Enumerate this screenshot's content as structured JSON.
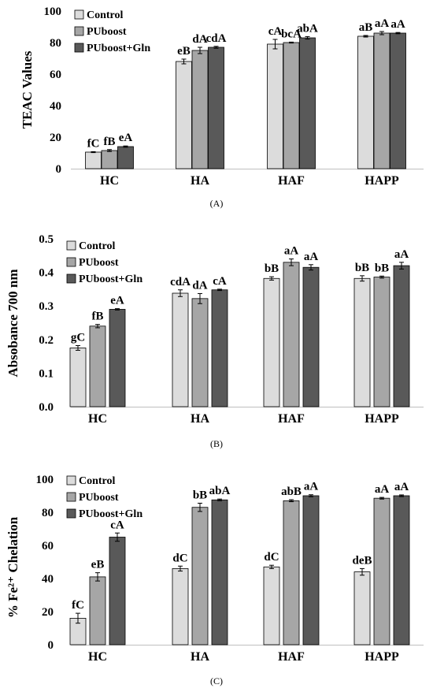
{
  "colors": {
    "control": "#dcdcdc",
    "puboost": "#a6a6a6",
    "puboost_gln": "#595959",
    "outline": "#000000"
  },
  "chart_data": [
    {
      "type": "bar",
      "panel_label": "(A)",
      "ylabel": "TEAC Values",
      "ylim": [
        0,
        100
      ],
      "yticks": [
        "0",
        "20",
        "40",
        "60",
        "80",
        "100"
      ],
      "categories": [
        "HC",
        "HA",
        "HAF",
        "HAPP"
      ],
      "legend_position": "top-left",
      "series": [
        {
          "name": "Control",
          "values": [
            10.5,
            68,
            79,
            84
          ],
          "errors": [
            0.3,
            1.5,
            3.0,
            0.5
          ],
          "labels": [
            "fC",
            "eB",
            "cA",
            "aB"
          ]
        },
        {
          "name": "PUboost",
          "values": [
            11.5,
            75,
            80,
            86
          ],
          "errors": [
            0.6,
            2.0,
            0.3,
            1.0
          ],
          "labels": [
            "fB",
            "dA",
            "bcA",
            "aA"
          ]
        },
        {
          "name": "PUboost+Gln",
          "values": [
            14,
            77,
            83,
            86
          ],
          "errors": [
            0.4,
            0.6,
            0.8,
            0.4
          ],
          "labels": [
            "eA",
            "cdA",
            "abA",
            "aA"
          ]
        }
      ]
    },
    {
      "type": "bar",
      "panel_label": "(B)",
      "ylabel": "Absobance 700 nm",
      "ylim": [
        0,
        0.5
      ],
      "yticks": [
        "0.0",
        "0.1",
        "0.2",
        "0.3",
        "0.4",
        "0.5"
      ],
      "categories": [
        "HC",
        "HA",
        "HAF",
        "HAPP"
      ],
      "legend_position": "top-left",
      "series": [
        {
          "name": "Control",
          "values": [
            0.175,
            0.338,
            0.382,
            0.382
          ],
          "errors": [
            0.007,
            0.01,
            0.005,
            0.008
          ],
          "labels": [
            "gC",
            "cdA",
            "bB",
            "bB"
          ]
        },
        {
          "name": "PUboost",
          "values": [
            0.24,
            0.322,
            0.43,
            0.386
          ],
          "errors": [
            0.005,
            0.015,
            0.01,
            0.003
          ],
          "labels": [
            "fB",
            "dA",
            "aA",
            "bB"
          ]
        },
        {
          "name": "PUboost+Gln",
          "values": [
            0.29,
            0.348,
            0.415,
            0.42
          ],
          "errors": [
            0.002,
            0.002,
            0.008,
            0.01
          ],
          "labels": [
            "eA",
            "cA",
            "aA",
            "aA"
          ]
        }
      ]
    },
    {
      "type": "bar",
      "panel_label": "(C)",
      "ylabel": "% Fe²⁺ Chelation",
      "ylim": [
        0,
        100
      ],
      "yticks": [
        "0",
        "20",
        "40",
        "60",
        "80",
        "100"
      ],
      "categories": [
        "HC",
        "HA",
        "HAF",
        "HAPP"
      ],
      "legend_position": "top-left",
      "series": [
        {
          "name": "Control",
          "values": [
            16,
            46,
            47,
            44
          ],
          "errors": [
            3.0,
            1.5,
            1.0,
            2.0
          ],
          "labels": [
            "fC",
            "dC",
            "dC",
            "deB"
          ]
        },
        {
          "name": "PUboost",
          "values": [
            41,
            83,
            87,
            88.5
          ],
          "errors": [
            2.5,
            2.5,
            0.6,
            0.5
          ],
          "labels": [
            "eB",
            "bB",
            "abB",
            "aA"
          ]
        },
        {
          "name": "PUboost+Gln",
          "values": [
            65,
            87.5,
            90,
            90
          ],
          "errors": [
            2.5,
            0.5,
            0.6,
            0.5
          ],
          "labels": [
            "cA",
            "abA",
            "aA",
            "aA"
          ]
        }
      ]
    }
  ]
}
